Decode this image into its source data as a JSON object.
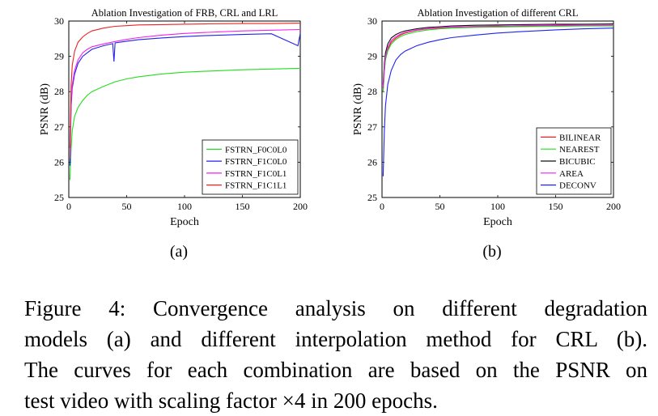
{
  "chart_data": [
    {
      "type": "line",
      "title": "Ablation Investigation of FRB, CRL and LRL",
      "xlabel": "Epoch",
      "ylabel": "PSNR (dB)",
      "xlim": [
        0,
        200
      ],
      "ylim": [
        25,
        30
      ],
      "xticks": [
        0,
        50,
        100,
        150,
        200
      ],
      "yticks": [
        25,
        26,
        27,
        28,
        29,
        30
      ],
      "legend_position": "bottom-right",
      "series": [
        {
          "name": "FSTRN_F0C0L0",
          "color": "#22dd22",
          "x": [
            1,
            2,
            3,
            5,
            8,
            12,
            16,
            20,
            30,
            40,
            50,
            60,
            80,
            100,
            120,
            150,
            175,
            200
          ],
          "y": [
            25.5,
            26.4,
            26.9,
            27.3,
            27.55,
            27.75,
            27.9,
            28.0,
            28.15,
            28.28,
            28.36,
            28.42,
            28.5,
            28.55,
            28.58,
            28.62,
            28.64,
            28.66
          ]
        },
        {
          "name": "FSTRN_F1C0L0",
          "color": "#2222ee",
          "x": [
            1,
            2,
            3,
            5,
            8,
            12,
            16,
            20,
            30,
            38,
            39,
            40,
            50,
            60,
            80,
            100,
            120,
            150,
            175,
            198,
            200
          ],
          "y": [
            25.9,
            27.6,
            28.1,
            28.5,
            28.8,
            29.0,
            29.1,
            29.2,
            29.3,
            29.36,
            28.85,
            29.38,
            29.43,
            29.47,
            29.52,
            29.56,
            29.59,
            29.62,
            29.64,
            29.3,
            29.65
          ]
        },
        {
          "name": "FSTRN_F1C0L1",
          "color": "#ee22ee",
          "x": [
            1,
            2,
            3,
            5,
            8,
            12,
            16,
            20,
            30,
            40,
            50,
            60,
            80,
            100,
            120,
            150,
            175,
            200
          ],
          "y": [
            26.1,
            27.7,
            28.2,
            28.6,
            28.9,
            29.1,
            29.2,
            29.27,
            29.35,
            29.42,
            29.48,
            29.53,
            29.6,
            29.65,
            29.68,
            29.72,
            29.74,
            29.76
          ]
        },
        {
          "name": "FSTRN_F1C1L1",
          "color": "#ee2222",
          "x": [
            1,
            2,
            3,
            5,
            8,
            12,
            16,
            20,
            30,
            40,
            50,
            60,
            80,
            100,
            120,
            150,
            175,
            200
          ],
          "y": [
            26.4,
            28.2,
            28.75,
            29.15,
            29.4,
            29.55,
            29.65,
            29.72,
            29.8,
            29.85,
            29.87,
            29.89,
            29.9,
            29.91,
            29.92,
            29.93,
            29.93,
            29.94
          ]
        }
      ]
    },
    {
      "type": "line",
      "title": "Ablation Investigation of different CRL",
      "xlabel": "Epoch",
      "ylabel": "PSNR (dB)",
      "xlim": [
        0,
        200
      ],
      "ylim": [
        25,
        30
      ],
      "xticks": [
        0,
        50,
        100,
        150,
        200
      ],
      "yticks": [
        25,
        26,
        27,
        28,
        29,
        30
      ],
      "legend_position": "bottom-right",
      "series": [
        {
          "name": "BILINEAR",
          "color": "#ee2222",
          "x": [
            1,
            2,
            3,
            5,
            8,
            12,
            16,
            20,
            30,
            40,
            50,
            60,
            80,
            100,
            120,
            150,
            175,
            200
          ],
          "y": [
            28.0,
            28.6,
            28.95,
            29.2,
            29.4,
            29.52,
            29.6,
            29.66,
            29.74,
            29.78,
            29.8,
            29.82,
            29.84,
            29.85,
            29.86,
            29.87,
            29.87,
            29.88
          ]
        },
        {
          "name": "NEAREST",
          "color": "#22dd22",
          "x": [
            1,
            2,
            3,
            5,
            8,
            12,
            16,
            20,
            30,
            40,
            50,
            60,
            80,
            100,
            120,
            150,
            175,
            200
          ],
          "y": [
            28.0,
            28.55,
            28.9,
            29.15,
            29.35,
            29.48,
            29.56,
            29.62,
            29.7,
            29.75,
            29.78,
            29.8,
            29.82,
            29.83,
            29.84,
            29.85,
            29.86,
            29.86
          ]
        },
        {
          "name": "BICUBIC",
          "color": "#111111",
          "x": [
            1,
            2,
            3,
            5,
            8,
            12,
            16,
            20,
            30,
            40,
            50,
            60,
            80,
            100,
            120,
            150,
            175,
            200
          ],
          "y": [
            28.2,
            28.8,
            29.1,
            29.35,
            29.52,
            29.62,
            29.68,
            29.72,
            29.78,
            29.82,
            29.84,
            29.86,
            29.88,
            29.89,
            29.9,
            29.91,
            29.91,
            29.92
          ]
        },
        {
          "name": "AREA",
          "color": "#ee22ee",
          "x": [
            1,
            2,
            3,
            5,
            8,
            12,
            16,
            20,
            30,
            40,
            50,
            60,
            80,
            100,
            120,
            150,
            175,
            200
          ],
          "y": [
            28.1,
            28.7,
            29.0,
            29.25,
            29.45,
            29.56,
            29.63,
            29.68,
            29.75,
            29.79,
            29.82,
            29.83,
            29.85,
            29.86,
            29.87,
            29.88,
            29.89,
            29.89
          ]
        },
        {
          "name": "DECONV",
          "color": "#2222ee",
          "x": [
            1,
            2,
            3,
            5,
            8,
            12,
            16,
            20,
            30,
            40,
            50,
            60,
            80,
            100,
            120,
            150,
            175,
            200
          ],
          "y": [
            25.6,
            26.9,
            27.6,
            28.2,
            28.6,
            28.9,
            29.05,
            29.15,
            29.3,
            29.4,
            29.47,
            29.53,
            29.6,
            29.66,
            29.7,
            29.75,
            29.78,
            29.8
          ]
        }
      ]
    }
  ],
  "subfigure_labels": [
    "(a)",
    "(b)"
  ],
  "caption_lines": [
    "Figure 4:  Convergence analysis on different degradation",
    "models (a) and different interpolation method for CRL (b).",
    "The curves for each combination are based on the PSNR on",
    "test video with scaling factor ×4 in 200 epochs."
  ]
}
